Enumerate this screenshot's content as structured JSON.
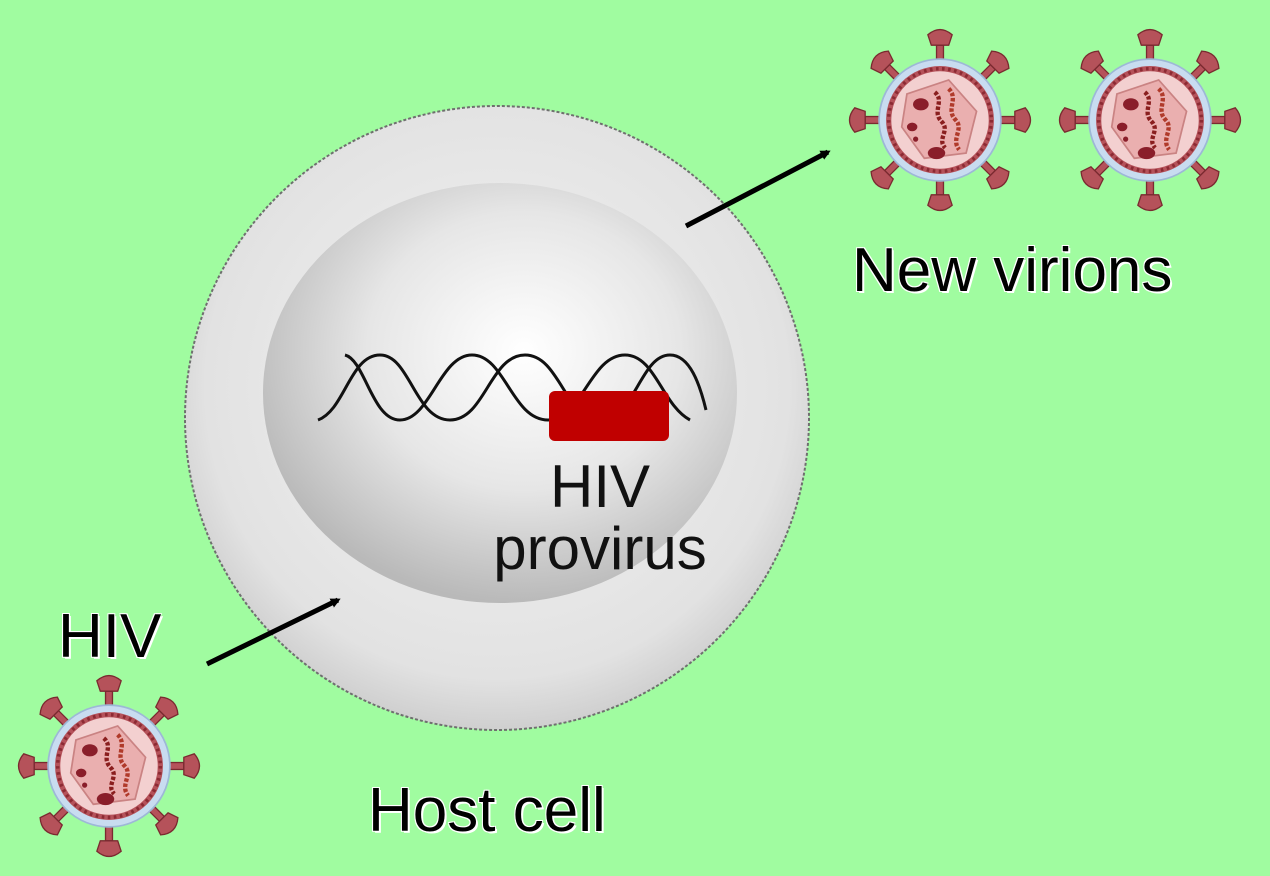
{
  "labels": {
    "new_virions": "New virions",
    "hiv": "HIV",
    "provirus_line1": "HIV",
    "provirus_line2": "provirus",
    "host_cell": "Host cell"
  },
  "colors": {
    "background": "#a0fca0",
    "provirus_block": "#c00000",
    "virion_outer": "#b5525a",
    "virion_inner": "#f0b8b8",
    "virion_halo": "#c8dcf0"
  },
  "icons": [
    "hiv-virion-icon",
    "arrow-icon",
    "dna-helix-icon"
  ]
}
